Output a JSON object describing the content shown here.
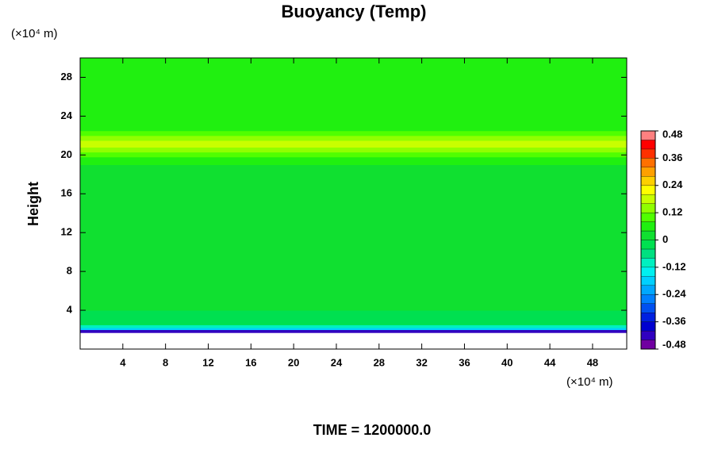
{
  "chart_data": {
    "type": "contour",
    "title": "Buoyancy (Temp)",
    "ylabel": "Height",
    "y_unit": "(×10⁴ m)",
    "x_unit": "(×10⁴ m)",
    "annotation": "TIME = 1200000.0",
    "xlim": [
      0,
      51.2
    ],
    "ylim": [
      0,
      30
    ],
    "xticks": [
      4,
      8,
      12,
      16,
      20,
      24,
      28,
      32,
      36,
      40,
      44,
      48
    ],
    "yticks": [
      4,
      8,
      12,
      16,
      20,
      24,
      28
    ],
    "height_bins": [
      1.7,
      2.0,
      2.2,
      2.5,
      4,
      6,
      8,
      10,
      12,
      14,
      16,
      18,
      19,
      19.8,
      20.3,
      20.8,
      21.5,
      22,
      22.5,
      23.5,
      25,
      27,
      30
    ],
    "values": [
      -0.44,
      -0.2,
      -0.1,
      -0.02,
      0.0,
      0.0,
      0.0,
      0.02,
      0.0,
      0.0,
      0.0,
      0.02,
      0.04,
      0.08,
      0.14,
      0.18,
      0.14,
      0.1,
      0.06,
      0.04,
      0.06,
      0.04
    ],
    "levels": [
      -0.48,
      -0.44,
      -0.4,
      -0.36,
      -0.32,
      -0.28,
      -0.24,
      -0.2,
      -0.16,
      -0.12,
      -0.08,
      -0.04,
      0,
      0.04,
      0.08,
      0.12,
      0.16,
      0.2,
      0.24,
      0.28,
      0.32,
      0.36,
      0.4,
      0.44,
      0.48
    ],
    "colors": [
      "#7000a0",
      "#3000c0",
      "#0000d0",
      "#0020e0",
      "#0050f0",
      "#0080ff",
      "#00a8ff",
      "#00d0ff",
      "#00f0f0",
      "#00f0c0",
      "#00e080",
      "#00e050",
      "#10e030",
      "#20f010",
      "#50ff00",
      "#90ff00",
      "#c8ff00",
      "#ffff00",
      "#ffd000",
      "#ffa000",
      "#ff7000",
      "#ff3000",
      "#ff0000",
      "#ff8080"
    ],
    "colorbar_ticks": [
      0.48,
      0.36,
      0.24,
      0.12,
      0,
      -0.12,
      -0.24,
      -0.36,
      -0.48
    ]
  }
}
